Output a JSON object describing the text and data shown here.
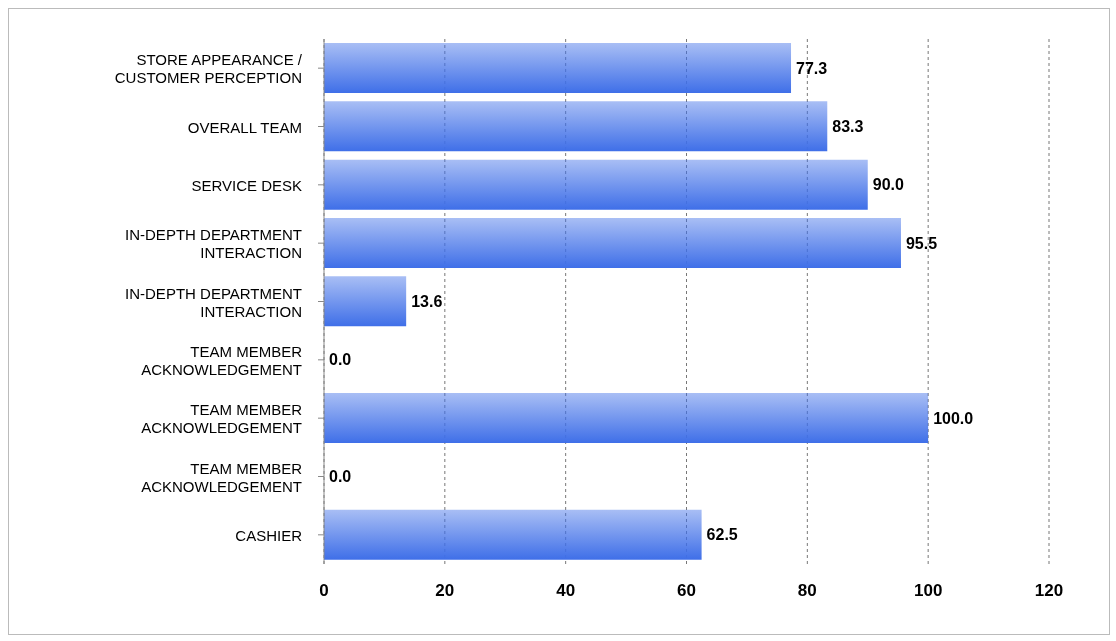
{
  "chart_data": {
    "type": "bar",
    "orientation": "horizontal",
    "categories": [
      "STORE APPEARANCE / CUSTOMER PERCEPTION",
      "OVERALL TEAM",
      "SERVICE DESK",
      "IN-DEPTH DEPARTMENT INTERACTION",
      "IN-DEPTH DEPARTMENT INTERACTION",
      "TEAM MEMBER ACKNOWLEDGEMENT",
      "TEAM MEMBER ACKNOWLEDGEMENT",
      "TEAM MEMBER ACKNOWLEDGEMENT",
      "CASHIER"
    ],
    "values": [
      77.3,
      83.3,
      90.0,
      95.5,
      13.6,
      0.0,
      100.0,
      0.0,
      62.5
    ],
    "value_labels": [
      "77.3",
      "83.3",
      "90.0",
      "95.5",
      "13.6",
      "0.0",
      "100.0",
      "0.0",
      "62.5"
    ],
    "color": "#3f6fe8",
    "xlim": [
      0,
      120
    ],
    "xticks": [
      0,
      20,
      40,
      60,
      80,
      100,
      120
    ],
    "grid": "x"
  }
}
